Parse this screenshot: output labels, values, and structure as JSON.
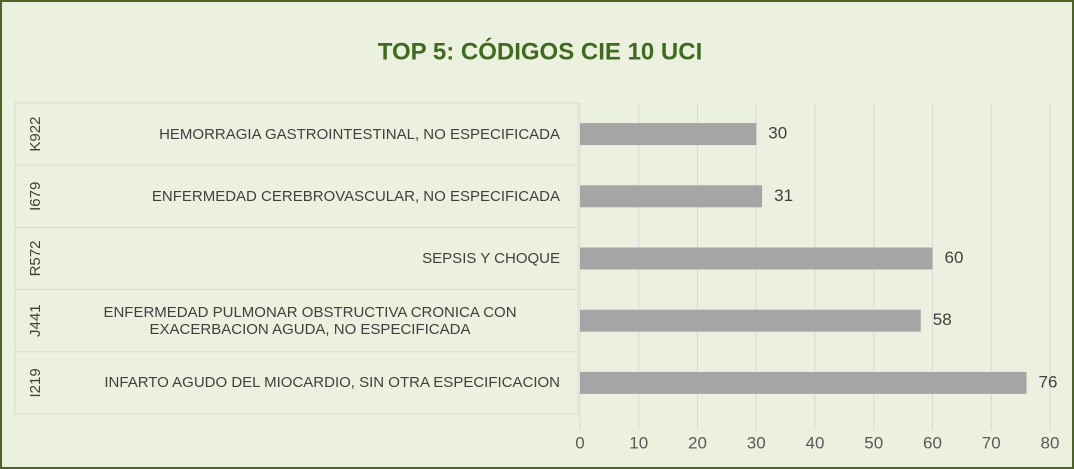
{
  "chart_data": {
    "type": "bar",
    "orientation": "horizontal",
    "title": "TOP 5: CÓDIGOS CIE 10 UCI",
    "codes": [
      "K922",
      "I679",
      "R572",
      "J441",
      "I219"
    ],
    "categories": [
      "HEMORRAGIA GASTROINTESTINAL, NO ESPECIFICADA",
      "ENFERMEDAD CEREBROVASCULAR, NO ESPECIFICADA",
      "SEPSIS Y CHOQUE",
      "ENFERMEDAD PULMONAR OBSTRUCTIVA CRONICA CON EXACERBACION AGUDA, NO ESPECIFICADA",
      "INFARTO AGUDO DEL MIOCARDIO, SIN OTRA ESPECIFICACION"
    ],
    "values": [
      30,
      31,
      60,
      58,
      76
    ],
    "color": "#a5a5a5",
    "xlim": [
      0,
      80
    ],
    "xticks": [
      0,
      10,
      20,
      30,
      40,
      50,
      60,
      70,
      80
    ],
    "grid": true
  }
}
